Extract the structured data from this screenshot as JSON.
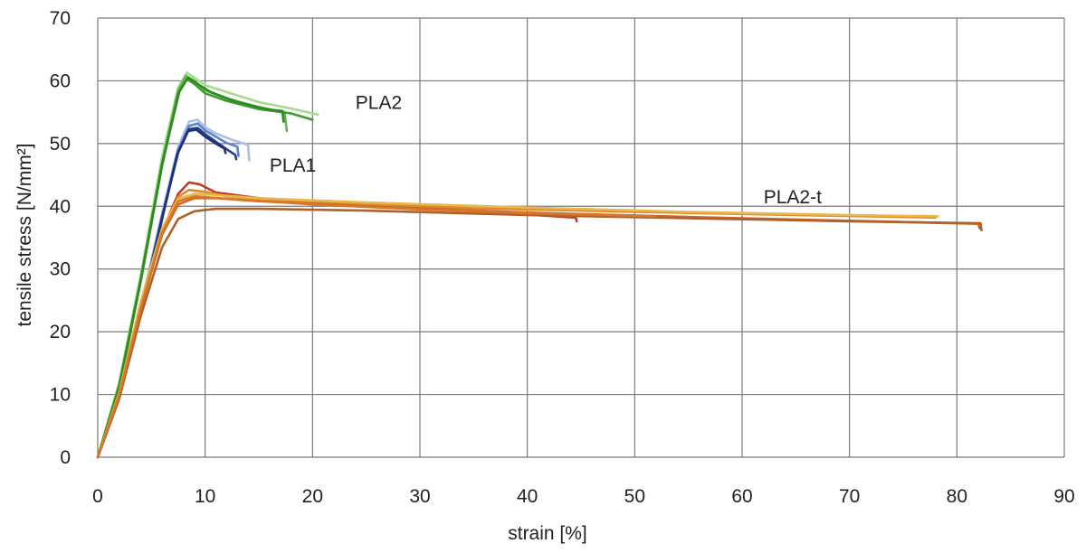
{
  "chart_data": {
    "type": "line",
    "title": "",
    "xlabel": "strain [%]",
    "ylabel": "tensile stress [N/mm²]",
    "xlim": [
      0,
      90
    ],
    "ylim": [
      0,
      70
    ],
    "x_ticks": [
      0,
      10,
      20,
      30,
      40,
      50,
      60,
      70,
      80,
      90
    ],
    "y_ticks": [
      0,
      10,
      20,
      30,
      40,
      50,
      60,
      70
    ],
    "grid": true,
    "series_labels": [
      {
        "text": "PLA2",
        "x": 24,
        "y": 55.5
      },
      {
        "text": "PLA1",
        "x": 16,
        "y": 45.5
      },
      {
        "text": "PLA2-t",
        "x": 62,
        "y": 40.5
      }
    ],
    "series": [
      {
        "group": "PLA2",
        "color": "#a6dc8c",
        "points": [
          [
            0,
            0
          ],
          [
            2,
            12
          ],
          [
            4,
            29
          ],
          [
            6,
            48
          ],
          [
            7.5,
            59
          ],
          [
            8.3,
            61.3
          ],
          [
            9,
            60.5
          ],
          [
            10,
            59.3
          ],
          [
            12,
            58.2
          ],
          [
            15,
            56.6
          ],
          [
            18,
            55.6
          ],
          [
            20.5,
            54.6
          ]
        ]
      },
      {
        "group": "PLA2",
        "color": "#5fb84a",
        "points": [
          [
            0,
            0
          ],
          [
            2,
            11.5
          ],
          [
            4,
            28.5
          ],
          [
            6,
            47
          ],
          [
            7.5,
            58.5
          ],
          [
            8.2,
            60.8
          ],
          [
            9,
            60
          ],
          [
            10,
            58.5
          ],
          [
            12,
            57.2
          ],
          [
            15,
            55.8
          ],
          [
            17.4,
            55.0
          ],
          [
            17.6,
            52
          ]
        ]
      },
      {
        "group": "PLA2",
        "color": "#3d9a30",
        "points": [
          [
            0,
            0
          ],
          [
            2,
            11
          ],
          [
            4,
            28
          ],
          [
            6,
            46.5
          ],
          [
            7.5,
            58
          ],
          [
            8.3,
            60.3
          ],
          [
            9,
            59.5
          ],
          [
            10,
            58
          ],
          [
            12,
            56.8
          ],
          [
            15,
            55.5
          ],
          [
            18,
            54.8
          ],
          [
            20,
            53.8
          ]
        ]
      },
      {
        "group": "PLA2",
        "color": "#2e8a22",
        "points": [
          [
            0,
            0
          ],
          [
            2,
            11.3
          ],
          [
            4,
            28.2
          ],
          [
            6,
            46.8
          ],
          [
            7.6,
            58.3
          ],
          [
            8.4,
            60.5
          ],
          [
            9.2,
            59.6
          ],
          [
            10.5,
            58.2
          ],
          [
            13,
            56.6
          ],
          [
            16,
            55.4
          ],
          [
            17.2,
            55.2
          ],
          [
            17.3,
            53.5
          ]
        ]
      },
      {
        "group": "PLA1",
        "color": "#a8c0e8",
        "points": [
          [
            0,
            0
          ],
          [
            2,
            10
          ],
          [
            4,
            24
          ],
          [
            6,
            39
          ],
          [
            7.5,
            49.5
          ],
          [
            8.5,
            53.5
          ],
          [
            9.3,
            53.8
          ],
          [
            10,
            52.6
          ],
          [
            11,
            51.6
          ],
          [
            12.5,
            50.6
          ],
          [
            14,
            49.8
          ],
          [
            14.1,
            47.3
          ]
        ]
      },
      {
        "group": "PLA1",
        "color": "#5b82cc",
        "points": [
          [
            0,
            0
          ],
          [
            2,
            9.7
          ],
          [
            4,
            23.5
          ],
          [
            6,
            38.5
          ],
          [
            7.5,
            49
          ],
          [
            8.5,
            52.8
          ],
          [
            9.3,
            53.2
          ],
          [
            10,
            52.1
          ],
          [
            11,
            51.1
          ],
          [
            12,
            50.1
          ],
          [
            13,
            49.5
          ],
          [
            13.1,
            48
          ]
        ]
      },
      {
        "group": "PLA1",
        "color": "#2a3d8f",
        "points": [
          [
            0,
            0
          ],
          [
            2,
            9.5
          ],
          [
            4,
            23.3
          ],
          [
            6,
            38.3
          ],
          [
            7.5,
            48.6
          ],
          [
            8.5,
            52.3
          ],
          [
            9.3,
            52.5
          ],
          [
            10,
            51.5
          ],
          [
            11,
            50.3
          ],
          [
            12,
            49.1
          ],
          [
            12.8,
            48.2
          ],
          [
            12.9,
            47.5
          ]
        ]
      },
      {
        "group": "PLA1",
        "color": "#1f2f7a",
        "points": [
          [
            0,
            0
          ],
          [
            2,
            9.4
          ],
          [
            4,
            23
          ],
          [
            6,
            38
          ],
          [
            7.4,
            48.3
          ],
          [
            8.4,
            52
          ],
          [
            9.2,
            52.2
          ],
          [
            10,
            51.1
          ],
          [
            11,
            50.0
          ],
          [
            11.8,
            49.2
          ],
          [
            11.9,
            48.5
          ]
        ]
      },
      {
        "group": "PLA2-t",
        "color": "#c23a1e",
        "points": [
          [
            0,
            0
          ],
          [
            2,
            10
          ],
          [
            4,
            24
          ],
          [
            6,
            36
          ],
          [
            7.5,
            42
          ],
          [
            8.5,
            43.8
          ],
          [
            9.5,
            43.5
          ],
          [
            11,
            42.2
          ],
          [
            15,
            41.3
          ],
          [
            25,
            40.2
          ],
          [
            35,
            39.2
          ],
          [
            44.5,
            38.2
          ],
          [
            44.6,
            37.6
          ]
        ]
      },
      {
        "group": "PLA2-t",
        "color": "#e0892e",
        "points": [
          [
            0,
            0
          ],
          [
            2,
            10.2
          ],
          [
            4,
            24.5
          ],
          [
            6,
            36.2
          ],
          [
            7.5,
            41.5
          ],
          [
            8.5,
            42.6
          ],
          [
            10,
            42.3
          ],
          [
            12,
            41.6
          ],
          [
            20,
            40.6
          ],
          [
            35,
            39.7
          ],
          [
            50,
            39.1
          ],
          [
            65,
            38.6
          ],
          [
            78,
            38.2
          ]
        ]
      },
      {
        "group": "PLA2-t",
        "color": "#e8b84a",
        "points": [
          [
            0,
            0
          ],
          [
            2,
            10.3
          ],
          [
            4,
            24.8
          ],
          [
            6,
            36.5
          ],
          [
            7.5,
            41.2
          ],
          [
            9,
            42
          ],
          [
            11,
            41.8
          ],
          [
            15,
            41.3
          ],
          [
            25,
            40.6
          ],
          [
            40,
            39.8
          ],
          [
            55,
            39.1
          ],
          [
            70,
            38.6
          ],
          [
            78.2,
            38.4
          ]
        ]
      },
      {
        "group": "PLA2-t",
        "color": "#c96a28",
        "points": [
          [
            0,
            0
          ],
          [
            2,
            9.8
          ],
          [
            4,
            23.5
          ],
          [
            6,
            35.5
          ],
          [
            7.5,
            40.3
          ],
          [
            9,
            41.3
          ],
          [
            11,
            41.3
          ],
          [
            15,
            40.8
          ],
          [
            25,
            40.0
          ],
          [
            40,
            39.0
          ],
          [
            55,
            38.3
          ],
          [
            70,
            37.7
          ],
          [
            82,
            37.2
          ],
          [
            82.1,
            36.5
          ]
        ]
      },
      {
        "group": "PLA2-t",
        "color": "#b0612a",
        "points": [
          [
            0,
            0
          ],
          [
            2,
            9.3
          ],
          [
            4,
            22.5
          ],
          [
            6,
            33.5
          ],
          [
            7.5,
            38
          ],
          [
            9,
            39.2
          ],
          [
            11,
            39.6
          ],
          [
            15,
            39.6
          ],
          [
            25,
            39.3
          ],
          [
            40,
            38.6
          ],
          [
            55,
            38.1
          ],
          [
            70,
            37.6
          ],
          [
            82.2,
            37.3
          ],
          [
            82.3,
            36.2
          ]
        ]
      },
      {
        "group": "PLA2-t",
        "color": "#d9762a",
        "points": [
          [
            0,
            0
          ],
          [
            2,
            9.9
          ],
          [
            4,
            23.8
          ],
          [
            6,
            35.8
          ],
          [
            7.5,
            40.8
          ],
          [
            9,
            41.6
          ],
          [
            12,
            41.2
          ],
          [
            20,
            40.3
          ],
          [
            30,
            39.5
          ],
          [
            40,
            38.9
          ],
          [
            50,
            38.5
          ],
          [
            52,
            38.4
          ]
        ]
      }
    ]
  }
}
